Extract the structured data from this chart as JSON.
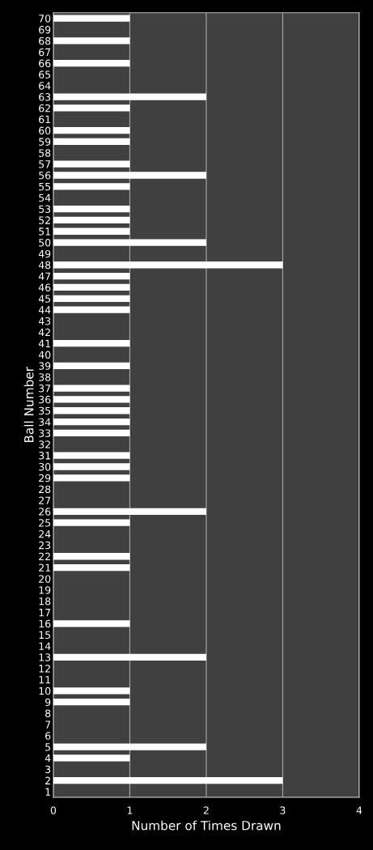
{
  "chart_data": {
    "type": "bar",
    "orientation": "horizontal",
    "xlabel": "Number of Times Drawn",
    "ylabel": "Ball Number",
    "categories": [
      "70",
      "69",
      "68",
      "67",
      "66",
      "65",
      "64",
      "63",
      "62",
      "61",
      "60",
      "59",
      "58",
      "57",
      "56",
      "55",
      "54",
      "53",
      "52",
      "51",
      "50",
      "49",
      "48",
      "47",
      "46",
      "45",
      "44",
      "43",
      "42",
      "41",
      "40",
      "39",
      "38",
      "37",
      "36",
      "35",
      "34",
      "33",
      "32",
      "31",
      "30",
      "29",
      "28",
      "27",
      "26",
      "25",
      "24",
      "23",
      "22",
      "21",
      "20",
      "19",
      "18",
      "17",
      "16",
      "15",
      "14",
      "13",
      "12",
      "11",
      "10",
      "9",
      "8",
      "7",
      "6",
      "5",
      "4",
      "3",
      "2",
      "1"
    ],
    "values": [
      1,
      0,
      1,
      0,
      1,
      0,
      0,
      2,
      1,
      0,
      1,
      1,
      0,
      1,
      2,
      1,
      0,
      1,
      1,
      1,
      2,
      0,
      3,
      1,
      1,
      1,
      1,
      0,
      0,
      1,
      0,
      1,
      0,
      1,
      1,
      1,
      1,
      1,
      0,
      1,
      1,
      1,
      0,
      0,
      2,
      1,
      0,
      0,
      1,
      1,
      0,
      0,
      0,
      0,
      1,
      0,
      0,
      2,
      0,
      0,
      1,
      1,
      0,
      0,
      0,
      2,
      1,
      0,
      3,
      0
    ],
    "color": "#ffffff",
    "xlim": [
      0,
      4
    ],
    "xticks": [
      0,
      1,
      2,
      3,
      4
    ],
    "grid": "x"
  }
}
